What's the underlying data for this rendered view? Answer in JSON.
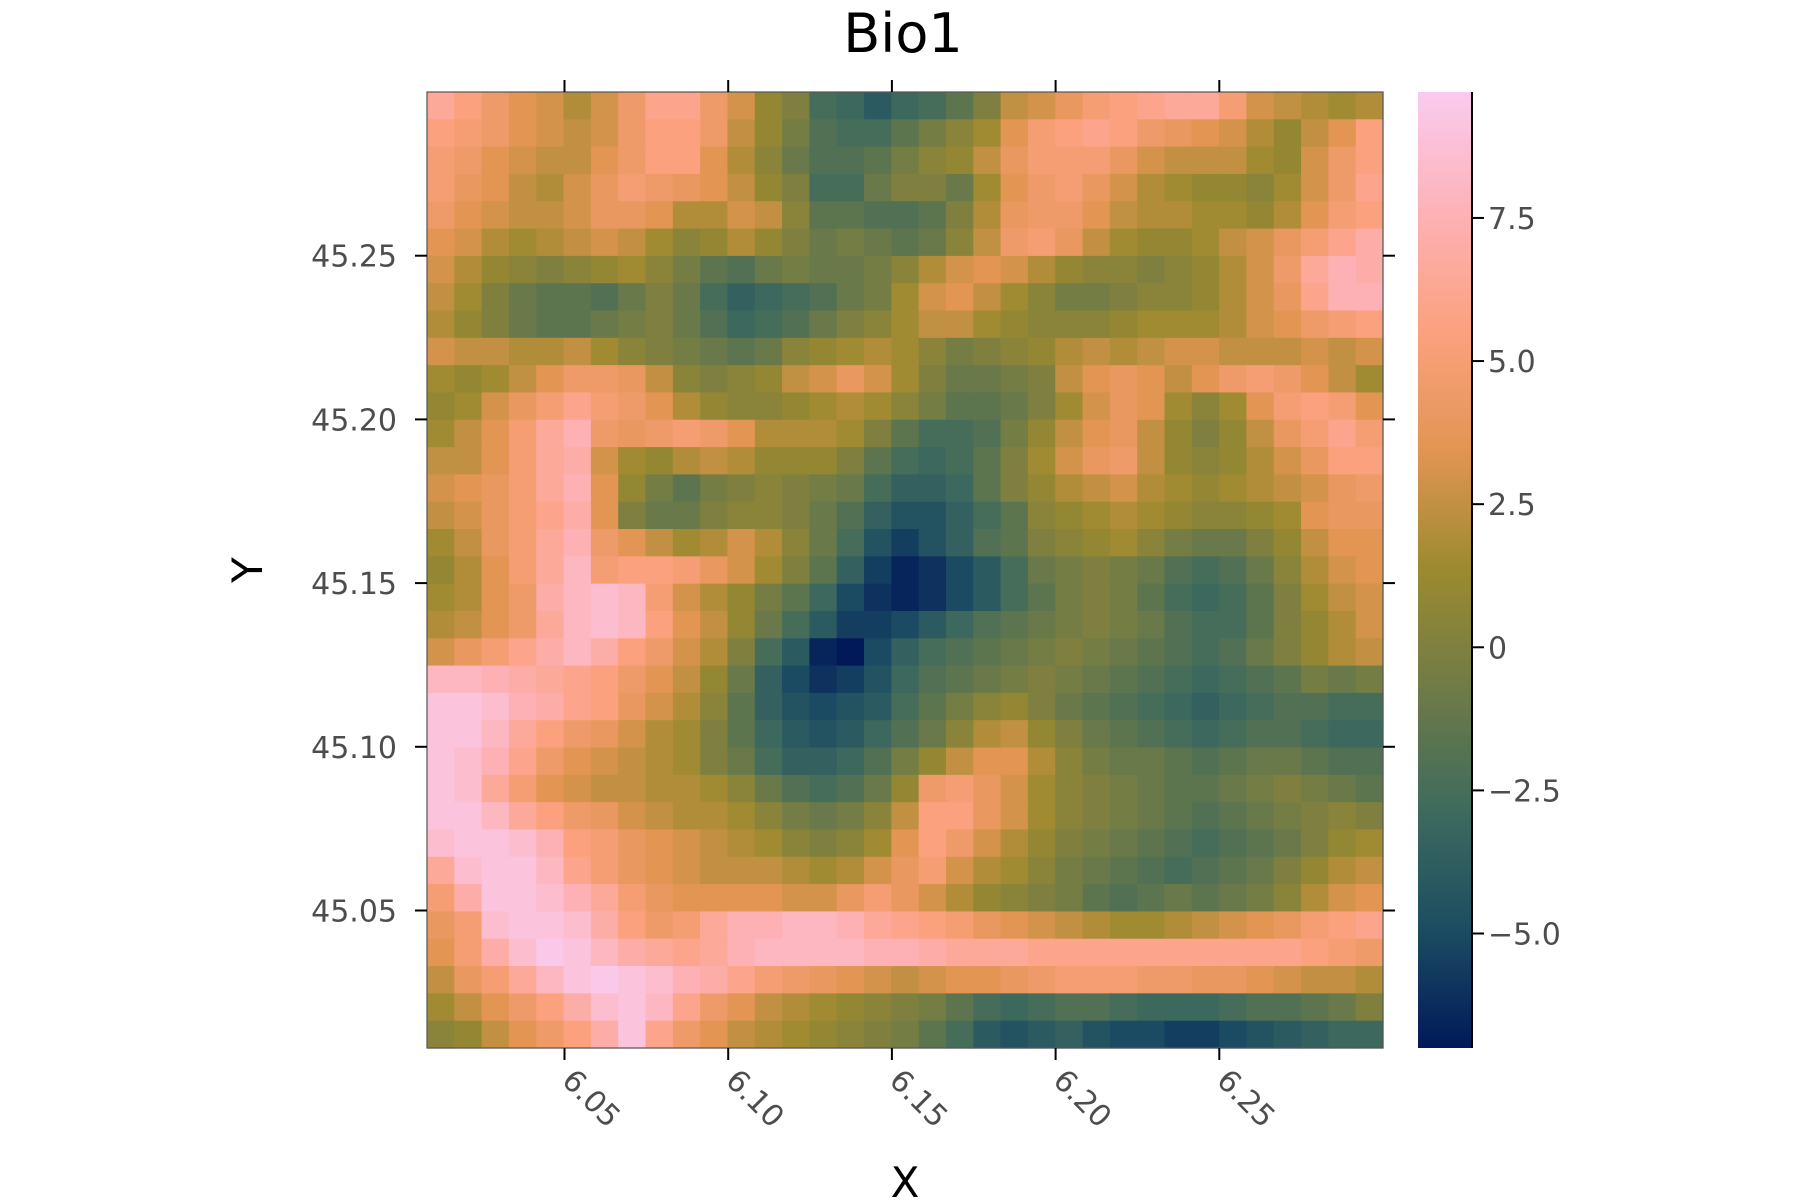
{
  "chart_data": {
    "type": "heatmap",
    "title": "Bio1",
    "xlabel": "X",
    "ylabel": "Y",
    "xlim": [
      6.008,
      6.3
    ],
    "ylim": [
      45.008,
      45.3
    ],
    "x_ticks": [
      6.05,
      6.1,
      6.15,
      6.2,
      6.25
    ],
    "x_tick_labels": [
      "6.05",
      "6.10",
      "6.15",
      "6.20",
      "6.25"
    ],
    "y_ticks": [
      45.05,
      45.1,
      45.15,
      45.2,
      45.25
    ],
    "y_tick_labels": [
      "45.05",
      "45.10",
      "45.15",
      "45.20",
      "45.25"
    ],
    "colorbar": {
      "min": -7.0,
      "max": 9.7,
      "ticks": [
        -5.0,
        -2.5,
        0,
        2.5,
        5.0,
        7.5
      ],
      "tick_labels": [
        "−5.0",
        "−2.5",
        "0",
        "2.5",
        "5.0",
        "7.5"
      ]
    },
    "colormap": [
      "#011959",
      "#1c4d62",
      "#3f6b5d",
      "#6f7b47",
      "#9b8a2f",
      "#e29553",
      "#fca17f",
      "#fdb2b7",
      "#facbef"
    ],
    "grid": false,
    "rows": 35,
    "cols": 35,
    "values": [
      [
        6.5,
        5.5,
        4.5,
        3.5,
        3.0,
        2.0,
        3.0,
        4.5,
        6.0,
        6.0,
        4.5,
        3.0,
        1.0,
        0.0,
        -2.5,
        -3.0,
        -4.0,
        -3.0,
        -2.5,
        -1.5,
        0.0,
        2.5,
        3.0,
        4.0,
        5.0,
        5.5,
        6.0,
        6.5,
        6.5,
        5.0,
        3.0,
        2.5,
        2.0,
        1.5,
        2.0
      ],
      [
        5.5,
        5.0,
        4.5,
        3.5,
        3.0,
        2.5,
        3.0,
        4.5,
        5.5,
        5.5,
        4.5,
        2.5,
        1.0,
        -0.5,
        -2.0,
        -2.5,
        -2.5,
        -1.5,
        -0.5,
        0.5,
        1.5,
        3.5,
        5.0,
        5.5,
        6.0,
        5.5,
        4.5,
        4.0,
        3.5,
        3.0,
        2.0,
        1.0,
        2.5,
        3.5,
        5.5
      ],
      [
        5.0,
        4.5,
        3.5,
        3.0,
        2.5,
        2.5,
        3.5,
        4.5,
        5.5,
        5.5,
        3.5,
        2.0,
        0.5,
        -1.0,
        -2.0,
        -2.0,
        -1.5,
        -0.5,
        0.5,
        1.0,
        2.5,
        4.0,
        5.0,
        5.0,
        5.0,
        4.0,
        3.0,
        2.5,
        2.5,
        2.5,
        1.5,
        1.0,
        3.0,
        4.5,
        5.5
      ],
      [
        5.0,
        4.0,
        3.5,
        2.5,
        2.0,
        3.0,
        4.0,
        5.0,
        4.5,
        4.0,
        3.5,
        2.5,
        1.0,
        0.0,
        -2.5,
        -2.5,
        -1.0,
        0.0,
        0.0,
        -1.0,
        1.5,
        3.5,
        4.5,
        5.0,
        4.0,
        3.0,
        2.0,
        1.5,
        1.0,
        1.0,
        0.5,
        1.5,
        3.0,
        4.5,
        6.0
      ],
      [
        4.5,
        3.5,
        3.0,
        2.5,
        2.5,
        3.0,
        4.0,
        4.0,
        3.5,
        2.0,
        2.0,
        3.0,
        2.5,
        0.5,
        -1.5,
        -1.5,
        -2.0,
        -2.0,
        -1.5,
        0.0,
        2.0,
        4.0,
        4.5,
        4.5,
        3.5,
        2.5,
        2.0,
        2.0,
        1.5,
        1.5,
        1.0,
        2.0,
        3.5,
        5.0,
        5.5
      ],
      [
        3.5,
        3.0,
        2.0,
        1.5,
        2.0,
        2.5,
        3.0,
        2.5,
        1.5,
        0.5,
        1.0,
        2.0,
        1.0,
        0.0,
        -1.0,
        -0.5,
        -1.0,
        -1.5,
        -1.0,
        0.5,
        2.5,
        4.5,
        5.0,
        4.0,
        2.5,
        1.5,
        1.0,
        1.0,
        1.5,
        2.5,
        3.0,
        4.0,
        5.0,
        6.0,
        7.0
      ],
      [
        3.0,
        2.0,
        1.0,
        0.5,
        0.0,
        0.5,
        1.0,
        1.5,
        0.5,
        -0.5,
        -1.5,
        -2.0,
        -1.0,
        -0.5,
        -1.0,
        -1.0,
        -0.5,
        0.5,
        2.0,
        3.0,
        3.5,
        3.0,
        2.0,
        1.0,
        0.5,
        0.5,
        0.0,
        0.5,
        1.0,
        2.0,
        3.0,
        4.5,
        6.5,
        7.5,
        7.0
      ],
      [
        2.5,
        1.5,
        0.0,
        -1.0,
        -1.5,
        -1.5,
        -2.0,
        -1.0,
        0.0,
        -1.0,
        -2.5,
        -3.5,
        -3.0,
        -2.5,
        -2.0,
        -1.0,
        -0.5,
        1.5,
        3.0,
        3.5,
        2.5,
        1.5,
        0.5,
        -0.5,
        -0.5,
        0.0,
        0.5,
        0.5,
        1.0,
        2.0,
        3.0,
        4.0,
        6.0,
        7.5,
        7.5
      ],
      [
        2.0,
        1.0,
        0.0,
        -1.0,
        -1.5,
        -1.5,
        -1.0,
        -0.5,
        0.0,
        -1.0,
        -2.0,
        -3.0,
        -2.5,
        -2.0,
        -1.0,
        0.0,
        0.5,
        1.5,
        2.5,
        2.5,
        1.5,
        1.0,
        0.5,
        0.5,
        0.5,
        1.0,
        1.5,
        1.5,
        1.5,
        2.0,
        3.0,
        3.5,
        4.5,
        5.0,
        5.5
      ],
      [
        3.0,
        2.5,
        2.5,
        2.0,
        2.0,
        2.5,
        1.5,
        0.5,
        0.0,
        -0.5,
        -1.0,
        -1.5,
        -1.0,
        0.5,
        1.0,
        1.5,
        2.0,
        1.5,
        0.5,
        -0.5,
        0.0,
        0.5,
        1.0,
        2.0,
        2.5,
        2.0,
        2.5,
        3.0,
        3.0,
        2.5,
        2.5,
        2.5,
        3.0,
        2.5,
        3.0
      ],
      [
        1.5,
        1.0,
        1.5,
        2.5,
        3.5,
        4.5,
        4.5,
        4.0,
        2.5,
        0.5,
        0.0,
        0.5,
        1.0,
        2.5,
        3.0,
        4.0,
        3.0,
        1.5,
        0.0,
        -1.0,
        -1.0,
        -0.5,
        0.0,
        2.5,
        3.5,
        4.0,
        3.5,
        2.5,
        3.5,
        4.5,
        5.0,
        4.5,
        3.5,
        2.5,
        1.5
      ],
      [
        1.0,
        1.5,
        3.0,
        4.0,
        5.0,
        6.0,
        5.0,
        4.5,
        3.5,
        2.0,
        1.0,
        0.5,
        0.5,
        1.0,
        1.5,
        2.0,
        1.5,
        0.5,
        -0.5,
        -1.5,
        -1.5,
        -1.0,
        0.0,
        1.5,
        3.0,
        4.0,
        3.5,
        1.5,
        0.5,
        1.5,
        3.5,
        5.0,
        5.5,
        5.0,
        3.5
      ],
      [
        1.5,
        2.5,
        3.5,
        5.0,
        6.5,
        7.5,
        4.5,
        4.0,
        4.5,
        5.0,
        4.5,
        3.5,
        2.0,
        2.0,
        2.0,
        1.5,
        0.0,
        -1.5,
        -2.5,
        -2.5,
        -2.0,
        -0.5,
        1.0,
        2.5,
        3.5,
        4.0,
        2.5,
        1.0,
        0.0,
        1.0,
        2.5,
        4.0,
        5.0,
        6.0,
        5.0
      ],
      [
        2.5,
        2.5,
        3.5,
        5.0,
        6.5,
        7.0,
        3.0,
        1.5,
        1.0,
        2.0,
        2.5,
        2.0,
        1.0,
        1.0,
        1.0,
        0.0,
        -1.5,
        -2.5,
        -3.0,
        -2.5,
        -1.5,
        0.0,
        1.5,
        3.0,
        4.0,
        4.5,
        2.5,
        1.0,
        0.5,
        1.0,
        2.0,
        3.0,
        4.0,
        5.5,
        5.5
      ],
      [
        3.0,
        3.5,
        4.0,
        5.0,
        6.5,
        7.5,
        3.5,
        1.0,
        -0.5,
        -1.5,
        -0.5,
        0.0,
        0.5,
        0.0,
        -0.5,
        -1.0,
        -2.5,
        -3.5,
        -3.5,
        -3.0,
        -1.5,
        0.0,
        1.0,
        2.0,
        2.5,
        3.0,
        2.0,
        1.5,
        1.0,
        1.5,
        2.0,
        2.5,
        3.0,
        4.0,
        4.5
      ],
      [
        2.5,
        3.0,
        4.0,
        5.0,
        6.0,
        7.0,
        3.5,
        0.0,
        -1.0,
        -1.0,
        0.0,
        0.5,
        0.5,
        0.0,
        -1.0,
        -2.0,
        -3.5,
        -4.5,
        -4.5,
        -3.5,
        -2.5,
        -1.5,
        0.5,
        1.0,
        1.5,
        2.0,
        1.5,
        1.0,
        0.5,
        0.5,
        1.0,
        1.5,
        3.5,
        4.0,
        4.0
      ],
      [
        1.5,
        2.5,
        4.0,
        5.0,
        6.5,
        7.5,
        4.5,
        3.5,
        2.5,
        1.5,
        2.0,
        3.0,
        2.0,
        0.5,
        -1.0,
        -2.5,
        -4.5,
        -5.5,
        -4.5,
        -3.5,
        -2.0,
        -1.5,
        0.0,
        0.5,
        1.0,
        1.5,
        0.5,
        -0.5,
        -1.0,
        -1.0,
        0.0,
        1.0,
        2.5,
        3.5,
        3.5
      ],
      [
        1.0,
        2.0,
        3.5,
        5.0,
        6.5,
        8.0,
        5.0,
        5.5,
        5.5,
        5.0,
        4.0,
        3.0,
        1.5,
        0.0,
        -1.5,
        -3.5,
        -5.5,
        -6.5,
        -6.0,
        -5.0,
        -4.0,
        -2.5,
        -1.0,
        -0.5,
        0.0,
        -0.5,
        -1.0,
        -2.0,
        -2.5,
        -2.0,
        -1.0,
        0.5,
        2.0,
        3.0,
        3.5
      ],
      [
        1.5,
        2.0,
        3.5,
        4.5,
        7.0,
        8.0,
        8.5,
        8.0,
        5.0,
        3.0,
        2.0,
        1.0,
        -0.5,
        -1.5,
        -3.0,
        -5.0,
        -6.0,
        -6.5,
        -6.0,
        -5.0,
        -4.0,
        -2.5,
        -1.5,
        -0.5,
        0.0,
        -0.5,
        -1.5,
        -2.5,
        -3.0,
        -2.5,
        -1.5,
        0.0,
        1.5,
        2.5,
        3.0
      ],
      [
        2.0,
        2.5,
        3.5,
        4.5,
        6.5,
        8.0,
        8.5,
        8.0,
        5.5,
        3.5,
        2.5,
        1.0,
        -1.0,
        -2.5,
        -4.0,
        -5.5,
        -5.5,
        -5.0,
        -4.0,
        -3.0,
        -2.0,
        -1.5,
        -1.0,
        -0.5,
        0.0,
        -0.5,
        -1.0,
        -2.0,
        -2.5,
        -2.5,
        -1.5,
        0.0,
        1.0,
        2.0,
        3.0
      ],
      [
        3.0,
        4.0,
        5.0,
        6.0,
        7.0,
        8.0,
        7.0,
        5.5,
        4.5,
        3.0,
        2.0,
        0.0,
        -2.5,
        -4.0,
        -6.5,
        -7.0,
        -5.0,
        -3.5,
        -2.5,
        -2.0,
        -1.5,
        -1.0,
        -0.5,
        0.0,
        -0.5,
        -1.0,
        -1.5,
        -2.0,
        -2.5,
        -2.0,
        -1.0,
        0.0,
        1.0,
        2.0,
        2.5
      ],
      [
        8.0,
        8.0,
        7.5,
        7.0,
        6.5,
        6.0,
        5.5,
        4.5,
        3.5,
        2.5,
        1.0,
        -1.0,
        -3.5,
        -5.0,
        -6.0,
        -5.5,
        -4.5,
        -3.0,
        -2.0,
        -1.5,
        -1.0,
        -0.5,
        0.0,
        -0.5,
        -1.0,
        -1.5,
        -2.0,
        -2.5,
        -3.0,
        -2.5,
        -2.0,
        -1.5,
        -0.5,
        -1.0,
        -0.5
      ],
      [
        9.0,
        9.0,
        8.5,
        7.5,
        7.0,
        6.0,
        5.5,
        4.0,
        3.0,
        2.0,
        0.5,
        -1.5,
        -3.5,
        -4.5,
        -5.0,
        -4.5,
        -4.0,
        -2.5,
        -1.5,
        -0.5,
        0.5,
        1.0,
        0.0,
        -1.0,
        -1.5,
        -2.0,
        -2.5,
        -3.0,
        -3.5,
        -3.0,
        -2.5,
        -2.0,
        -2.0,
        -2.5,
        -2.5
      ],
      [
        9.0,
        9.0,
        8.0,
        6.5,
        5.5,
        4.5,
        4.0,
        3.0,
        2.0,
        1.5,
        0.0,
        -1.5,
        -3.0,
        -4.0,
        -4.5,
        -4.0,
        -3.0,
        -2.0,
        -1.0,
        0.5,
        2.0,
        2.5,
        1.0,
        0.0,
        -1.0,
        -1.5,
        -2.0,
        -2.5,
        -3.0,
        -2.5,
        -2.0,
        -2.0,
        -2.5,
        -3.0,
        -3.0
      ],
      [
        9.0,
        8.5,
        7.5,
        6.0,
        4.5,
        3.5,
        3.0,
        2.5,
        2.0,
        1.5,
        0.0,
        -1.0,
        -2.5,
        -3.5,
        -3.5,
        -3.0,
        -2.0,
        -0.5,
        1.0,
        2.5,
        3.5,
        3.5,
        2.0,
        0.5,
        -0.5,
        -1.0,
        -1.0,
        -1.5,
        -2.0,
        -1.5,
        -1.0,
        -1.0,
        -1.5,
        -2.0,
        -2.0
      ],
      [
        9.0,
        8.5,
        6.5,
        5.0,
        3.5,
        3.0,
        2.5,
        2.5,
        2.0,
        2.0,
        1.5,
        0.5,
        -1.0,
        -2.0,
        -2.5,
        -2.0,
        -1.0,
        1.0,
        4.5,
        5.0,
        4.0,
        3.0,
        1.5,
        0.5,
        0.0,
        -0.5,
        -1.0,
        -1.5,
        -1.5,
        -1.0,
        -0.5,
        0.0,
        -0.5,
        -1.0,
        -1.5
      ],
      [
        9.0,
        9.0,
        8.0,
        6.5,
        5.5,
        4.5,
        4.0,
        3.0,
        2.5,
        2.0,
        2.0,
        1.5,
        0.5,
        -0.5,
        -1.0,
        -0.5,
        0.5,
        2.5,
        5.5,
        5.5,
        4.0,
        3.0,
        1.5,
        0.5,
        0.0,
        -0.5,
        -1.0,
        -1.5,
        -2.0,
        -1.5,
        -1.0,
        -0.5,
        0.0,
        0.5,
        0.0
      ],
      [
        8.5,
        9.0,
        9.0,
        8.5,
        7.5,
        5.5,
        5.0,
        4.0,
        3.5,
        3.0,
        2.5,
        2.0,
        1.5,
        0.5,
        0.0,
        0.5,
        1.5,
        3.5,
        5.5,
        4.5,
        3.0,
        2.0,
        1.0,
        0.0,
        -0.5,
        -1.0,
        -1.5,
        -2.0,
        -2.5,
        -2.0,
        -1.5,
        -1.0,
        0.0,
        1.0,
        1.5
      ],
      [
        6.5,
        8.5,
        9.0,
        9.0,
        8.0,
        6.0,
        5.0,
        4.0,
        3.5,
        3.0,
        2.5,
        2.5,
        2.5,
        2.0,
        1.5,
        2.0,
        3.0,
        4.0,
        5.0,
        3.0,
        2.0,
        1.5,
        0.5,
        -0.5,
        -1.0,
        -1.5,
        -2.0,
        -2.5,
        -2.0,
        -1.5,
        -1.0,
        0.0,
        1.0,
        2.0,
        2.5
      ],
      [
        5.0,
        7.0,
        9.0,
        9.0,
        8.5,
        7.5,
        6.5,
        5.0,
        4.0,
        3.5,
        3.5,
        3.5,
        3.5,
        3.0,
        3.0,
        4.0,
        5.0,
        4.0,
        3.0,
        2.0,
        1.0,
        0.5,
        0.0,
        -0.5,
        -1.5,
        -2.0,
        -1.5,
        -1.0,
        -1.5,
        -1.0,
        -0.5,
        0.5,
        2.0,
        3.0,
        3.5
      ],
      [
        4.0,
        5.0,
        8.5,
        9.0,
        9.0,
        8.5,
        7.0,
        5.5,
        4.5,
        5.0,
        6.5,
        7.5,
        7.5,
        8.0,
        8.0,
        7.5,
        6.5,
        6.0,
        5.5,
        5.0,
        4.0,
        3.5,
        3.0,
        2.5,
        2.0,
        1.5,
        1.5,
        2.0,
        2.5,
        3.0,
        3.5,
        4.0,
        5.0,
        5.5,
        6.0
      ],
      [
        3.5,
        5.0,
        7.0,
        8.5,
        9.5,
        9.0,
        8.0,
        7.0,
        6.5,
        6.0,
        6.5,
        7.5,
        8.0,
        8.0,
        8.0,
        8.0,
        7.5,
        7.5,
        7.0,
        6.5,
        6.5,
        6.5,
        6.0,
        6.0,
        6.0,
        6.0,
        6.0,
        6.0,
        6.0,
        6.0,
        6.0,
        6.0,
        5.5,
        5.0,
        4.5
      ],
      [
        2.5,
        4.0,
        5.0,
        6.5,
        8.0,
        9.0,
        9.5,
        9.0,
        8.5,
        7.5,
        7.0,
        6.0,
        5.0,
        4.5,
        4.0,
        3.5,
        3.0,
        2.5,
        3.0,
        3.5,
        3.5,
        4.0,
        4.5,
        5.0,
        5.0,
        5.0,
        4.5,
        4.5,
        4.0,
        4.0,
        3.5,
        3.0,
        2.5,
        2.5,
        2.0
      ],
      [
        1.5,
        2.5,
        3.5,
        4.5,
        5.5,
        7.0,
        8.5,
        9.0,
        8.0,
        6.0,
        4.5,
        3.5,
        2.5,
        2.0,
        1.5,
        1.0,
        0.5,
        0.0,
        -0.5,
        -1.5,
        -2.5,
        -3.0,
        -2.5,
        -2.0,
        -2.0,
        -2.5,
        -3.0,
        -3.0,
        -3.0,
        -2.5,
        -2.0,
        -2.0,
        -1.5,
        -1.0,
        0.0
      ],
      [
        0.5,
        1.0,
        2.5,
        3.5,
        4.5,
        5.5,
        7.0,
        9.0,
        6.0,
        4.5,
        3.5,
        2.5,
        2.0,
        1.5,
        1.0,
        0.5,
        0.0,
        -0.5,
        -1.5,
        -2.5,
        -4.0,
        -4.5,
        -4.0,
        -3.5,
        -4.5,
        -5.0,
        -5.0,
        -5.5,
        -5.5,
        -5.0,
        -4.5,
        -4.0,
        -3.5,
        -3.0,
        -3.0
      ]
    ]
  }
}
